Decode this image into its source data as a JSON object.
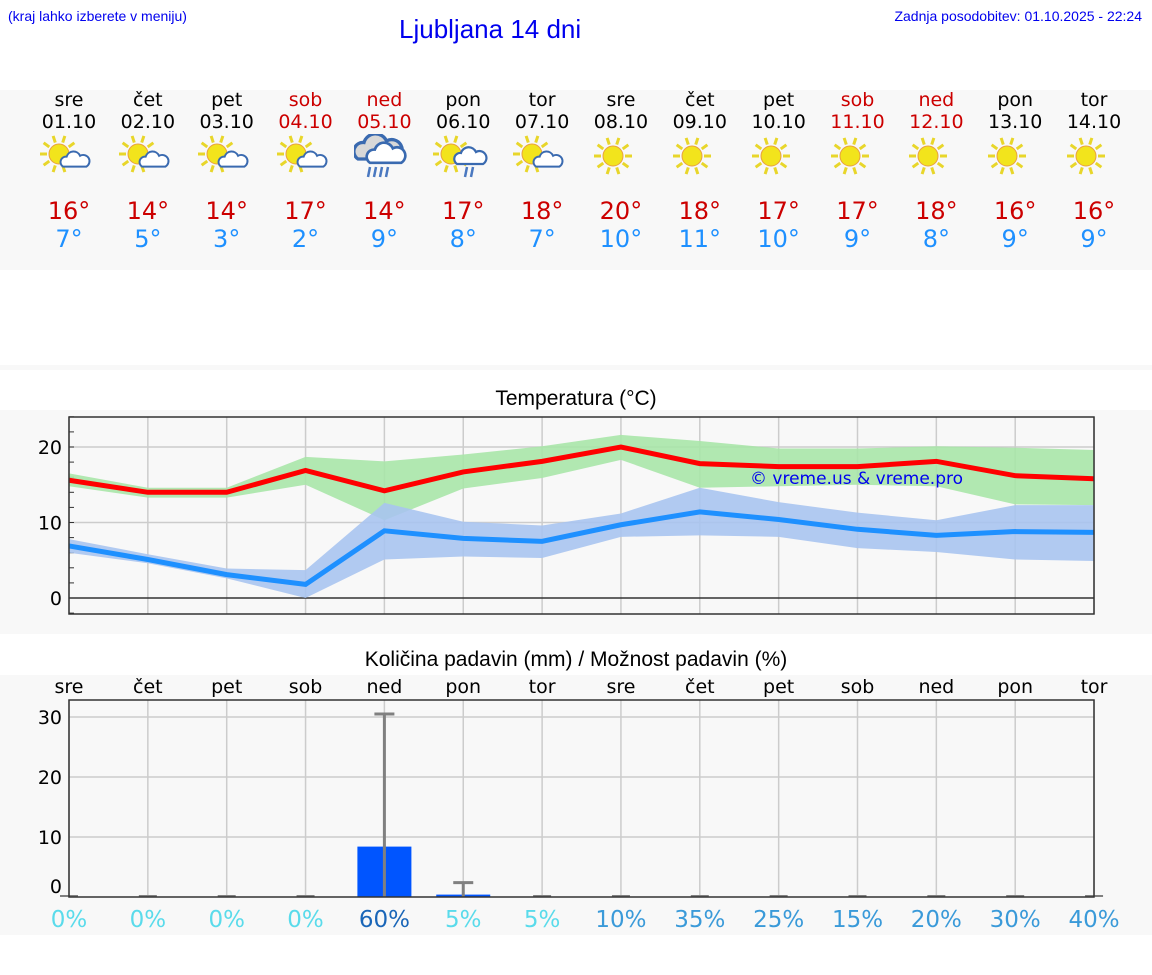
{
  "header": {
    "hint": "(kraj lahko izberete v meniju)",
    "title": "Ljubljana 14 dni",
    "updated": "Zadnja posodobitev: 01.10.2025 - 22:24"
  },
  "days": [
    {
      "dow": "sre",
      "date": "01.10",
      "weekend": false,
      "icon": "partly-cloudy",
      "max": "16°",
      "min": "7°"
    },
    {
      "dow": "čet",
      "date": "02.10",
      "weekend": false,
      "icon": "partly-cloudy",
      "max": "14°",
      "min": "5°"
    },
    {
      "dow": "pet",
      "date": "03.10",
      "weekend": false,
      "icon": "partly-cloudy",
      "max": "14°",
      "min": "3°"
    },
    {
      "dow": "sob",
      "date": "04.10",
      "weekend": true,
      "icon": "partly-cloudy",
      "max": "17°",
      "min": "2°"
    },
    {
      "dow": "ned",
      "date": "05.10",
      "weekend": true,
      "icon": "rain",
      "max": "14°",
      "min": "9°"
    },
    {
      "dow": "pon",
      "date": "06.10",
      "weekend": false,
      "icon": "partly-cloudy-rain",
      "max": "17°",
      "min": "8°"
    },
    {
      "dow": "tor",
      "date": "07.10",
      "weekend": false,
      "icon": "partly-cloudy",
      "max": "18°",
      "min": "7°"
    },
    {
      "dow": "sre",
      "date": "08.10",
      "weekend": false,
      "icon": "sunny",
      "max": "20°",
      "min": "10°"
    },
    {
      "dow": "čet",
      "date": "09.10",
      "weekend": false,
      "icon": "sunny",
      "max": "18°",
      "min": "11°"
    },
    {
      "dow": "pet",
      "date": "10.10",
      "weekend": false,
      "icon": "sunny",
      "max": "17°",
      "min": "10°"
    },
    {
      "dow": "sob",
      "date": "11.10",
      "weekend": true,
      "icon": "sunny",
      "max": "17°",
      "min": "9°"
    },
    {
      "dow": "ned",
      "date": "12.10",
      "weekend": true,
      "icon": "sunny",
      "max": "18°",
      "min": "8°"
    },
    {
      "dow": "pon",
      "date": "13.10",
      "weekend": false,
      "icon": "sunny",
      "max": "16°",
      "min": "9°"
    },
    {
      "dow": "tor",
      "date": "14.10",
      "weekend": false,
      "icon": "sunny",
      "max": "16°",
      "min": "9°"
    }
  ],
  "colors": {
    "max": "#cc0000",
    "min": "#1e90ff",
    "weekend": "#cc0000",
    "maxline": "#ff0000",
    "maxband": "#a8e6a8",
    "minline": "#1e90ff",
    "minband": "#a8c4f0",
    "bar": "#0055ff"
  },
  "chart_data": [
    {
      "type": "line",
      "title": "Temperatura (°C)",
      "ylim": [
        -2.1,
        24
      ],
      "yticks": [
        0,
        10,
        20
      ],
      "watermark": "© vreme.us & vreme.pro",
      "x": [
        "01.10",
        "02.10",
        "03.10",
        "04.10",
        "05.10",
        "06.10",
        "07.10",
        "08.10",
        "09.10",
        "10.10",
        "11.10",
        "12.10",
        "13.10",
        "14.10"
      ],
      "series": [
        {
          "name": "max",
          "values": [
            15.6,
            14,
            14,
            16.9,
            14.2,
            16.7,
            18.1,
            20,
            17.8,
            17.4,
            17.4,
            18.1,
            16.2,
            15.8
          ],
          "band_high": [
            16.5,
            14.6,
            14.6,
            18.7,
            18.1,
            19,
            20.1,
            21.6,
            20.8,
            19.8,
            19.8,
            20.1,
            19.9,
            19.6
          ],
          "band_low": [
            14.8,
            13.3,
            13.3,
            15,
            10.3,
            14.5,
            15.9,
            18.3,
            14.6,
            14.8,
            15,
            14.8,
            12.4,
            12.3
          ]
        },
        {
          "name": "min",
          "values": [
            6.9,
            5.1,
            3.1,
            1.8,
            8.9,
            7.9,
            7.5,
            9.7,
            11.4,
            10.4,
            9.1,
            8.3,
            8.8,
            8.7
          ],
          "band_high": [
            7.8,
            5.8,
            3.9,
            3.7,
            12.6,
            10.1,
            9.6,
            11.2,
            14.6,
            12.7,
            11.3,
            10.3,
            12.3,
            12.3
          ],
          "band_low": [
            6,
            4.6,
            2.6,
            0,
            5.1,
            5.5,
            5.3,
            8.1,
            8.3,
            8.1,
            6.6,
            6.1,
            5.1,
            4.9
          ]
        }
      ]
    },
    {
      "type": "bar",
      "title": "Količina padavin (mm) / Možnost padavin (%)",
      "ylim": [
        0,
        32.8
      ],
      "yticks": [
        0,
        10,
        20,
        30
      ],
      "categories": [
        "sre",
        "čet",
        "pet",
        "sob",
        "ned",
        "pon",
        "tor",
        "sre",
        "čet",
        "pet",
        "sob",
        "ned",
        "pon",
        "tor"
      ],
      "values": [
        0,
        0,
        0,
        0,
        8.4,
        0.4,
        0,
        0,
        0,
        0,
        0,
        0,
        0,
        0
      ],
      "error_high": [
        0,
        0,
        0,
        0,
        30.5,
        2.4,
        0,
        0,
        0,
        0,
        0,
        0,
        0,
        0
      ],
      "probability": [
        "0%",
        "0%",
        "0%",
        "0%",
        "60%",
        "5%",
        "5%",
        "10%",
        "35%",
        "25%",
        "15%",
        "20%",
        "30%",
        "40%"
      ],
      "probability_values": [
        0,
        0,
        0,
        0,
        60,
        5,
        5,
        10,
        35,
        25,
        15,
        20,
        30,
        40
      ]
    }
  ]
}
